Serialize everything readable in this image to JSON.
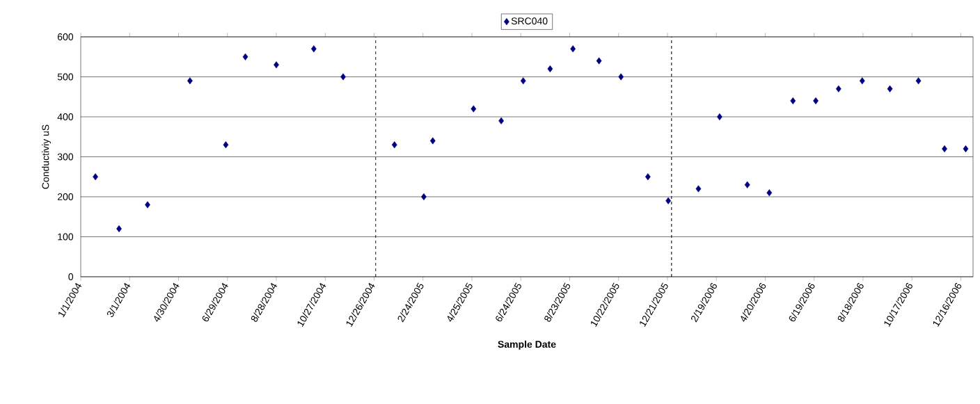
{
  "chart_data": {
    "type": "scatter",
    "xlabel": "Sample Date",
    "ylabel": "Conductiviy uS",
    "series": [
      {
        "name": "SRC040",
        "color": "#000080",
        "x": [
          "2004-01-19",
          "2004-02-17",
          "2004-03-23",
          "2004-05-14",
          "2004-06-27",
          "2004-07-21",
          "2004-08-28",
          "2004-10-13",
          "2004-11-18",
          "2005-01-20",
          "2005-02-25",
          "2005-03-08",
          "2005-04-27",
          "2005-05-31",
          "2005-06-27",
          "2005-07-30",
          "2005-08-27",
          "2005-09-28",
          "2005-10-25",
          "2005-11-27",
          "2005-12-22",
          "2006-01-28",
          "2006-02-23",
          "2006-03-29",
          "2006-04-25",
          "2006-05-24",
          "2006-06-21",
          "2006-07-19",
          "2006-08-17",
          "2006-09-20",
          "2006-10-25",
          "2006-11-26",
          "2006-12-22"
        ],
        "values": [
          250,
          120,
          180,
          490,
          330,
          550,
          530,
          570,
          500,
          330,
          200,
          340,
          420,
          390,
          490,
          520,
          570,
          540,
          500,
          250,
          190,
          220,
          400,
          230,
          210,
          440,
          440,
          470,
          490,
          470,
          490,
          320,
          320
        ]
      }
    ],
    "xlim": [
      "2004-01-01",
      "2006-12-31"
    ],
    "xticks": [
      {
        "value": "2004-01-01",
        "label": "1/1/2004"
      },
      {
        "value": "2004-03-01",
        "label": "3/1/2004"
      },
      {
        "value": "2004-04-30",
        "label": "4/30/2004"
      },
      {
        "value": "2004-06-29",
        "label": "6/29/2004"
      },
      {
        "value": "2004-08-28",
        "label": "8/28/2004"
      },
      {
        "value": "2004-10-27",
        "label": "10/27/2004"
      },
      {
        "value": "2004-12-26",
        "label": "12/26/2004"
      },
      {
        "value": "2005-02-24",
        "label": "2/24/2005"
      },
      {
        "value": "2005-04-25",
        "label": "4/25/2005"
      },
      {
        "value": "2005-06-24",
        "label": "6/24/2005"
      },
      {
        "value": "2005-08-23",
        "label": "8/23/2005"
      },
      {
        "value": "2005-10-22",
        "label": "10/22/2005"
      },
      {
        "value": "2005-12-21",
        "label": "12/21/2005"
      },
      {
        "value": "2006-02-19",
        "label": "2/19/2006"
      },
      {
        "value": "2006-04-20",
        "label": "4/20/2006"
      },
      {
        "value": "2006-06-19",
        "label": "6/19/2006"
      },
      {
        "value": "2006-08-18",
        "label": "8/18/2006"
      },
      {
        "value": "2006-10-17",
        "label": "10/17/2006"
      },
      {
        "value": "2006-12-16",
        "label": "12/16/2006"
      }
    ],
    "ylim": [
      0,
      600
    ],
    "yticks": [
      0,
      100,
      200,
      300,
      400,
      500,
      600
    ],
    "grid": "y",
    "legend": "top",
    "marker": "diamond",
    "ref_lines": [
      {
        "axis": "x",
        "value": "2004-12-28",
        "color": "#000000",
        "line_style": "dashed"
      },
      {
        "axis": "x",
        "value": "2005-12-26",
        "color": "#000000",
        "line_style": "dashed"
      }
    ]
  }
}
